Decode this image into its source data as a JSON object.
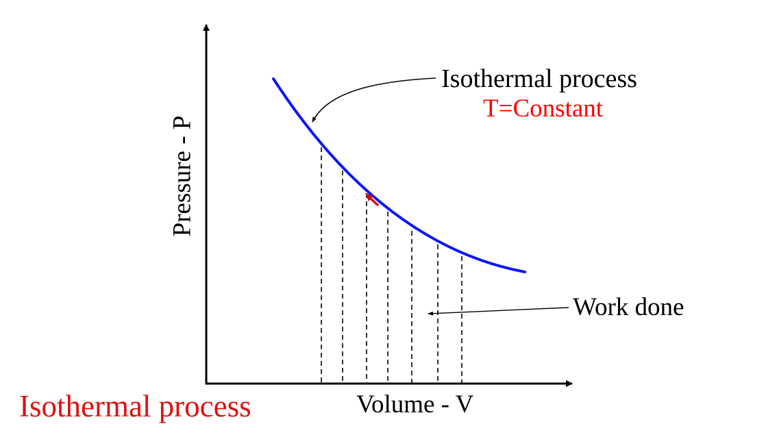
{
  "diagram": {
    "annotation_title": "Isothermal process",
    "annotation_condition": "T=Constant",
    "work_label": "Work done",
    "y_axis_label": "Pressure - P",
    "x_axis_label": "Volume - V",
    "caption": "Isothermal process"
  },
  "colors": {
    "curve": "#0a14ff",
    "condition_text": "#ff0000",
    "caption_text": "#e01010",
    "direction_arrow": "#d01010",
    "axes": "#000000"
  }
}
